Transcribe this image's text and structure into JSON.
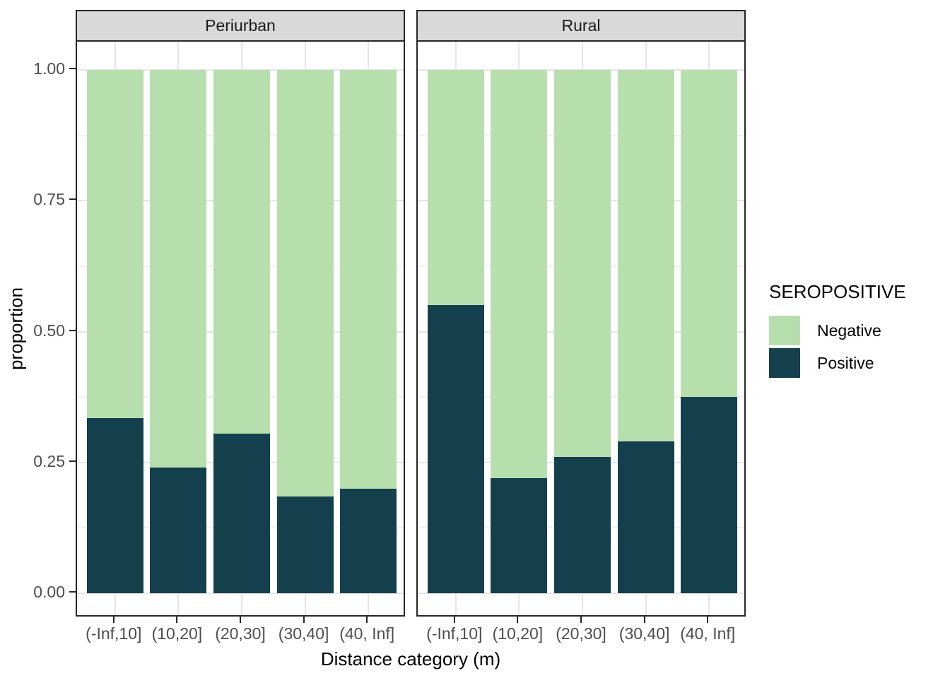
{
  "chart_data": {
    "type": "bar",
    "variant": "stacked-proportion-faceted",
    "title": "",
    "xlabel": "Distance category (m)",
    "ylabel": "proportion",
    "ylim": [
      0,
      1
    ],
    "yticks": [
      0,
      0.25,
      0.5,
      0.75,
      1
    ],
    "ytick_labels": [
      "0.00",
      "0.25",
      "0.50",
      "0.75",
      "1.00"
    ],
    "yticks_minor": [
      0.125,
      0.375,
      0.625,
      0.875
    ],
    "grid": "horizontal major+minor, vertical major at category centers",
    "categories": [
      "(-Inf,10]",
      "(10,20]",
      "(20,30]",
      "(30,40]",
      "(40, Inf]"
    ],
    "facets": [
      {
        "label": "Periurban",
        "series": [
          {
            "name": "Negative",
            "values": [
              0.665,
              0.76,
              0.695,
              0.815,
              0.8
            ]
          },
          {
            "name": "Positive",
            "values": [
              0.335,
              0.24,
              0.305,
              0.185,
              0.2
            ]
          }
        ]
      },
      {
        "label": "Rural",
        "series": [
          {
            "name": "Negative",
            "values": [
              0.45,
              0.78,
              0.74,
              0.71,
              0.625
            ]
          },
          {
            "name": "Positive",
            "values": [
              0.55,
              0.22,
              0.26,
              0.29,
              0.375
            ]
          }
        ]
      }
    ],
    "legend": {
      "title": "SEROPOSITIVE",
      "position": "right",
      "entries": [
        {
          "label": "Negative",
          "color": "#b7dfae"
        },
        {
          "label": "Positive",
          "color": "#14404d"
        }
      ]
    },
    "colors": {
      "negative_fill": "#b7dfae",
      "positive_fill": "#14404d",
      "strip_background": "#d9d9d9",
      "panel_border": "#262626",
      "grid_major": "#e5e5e5",
      "grid_minor": "#f0f0f0",
      "axis_text": "#4d4d4d",
      "title_text": "#000000"
    }
  }
}
